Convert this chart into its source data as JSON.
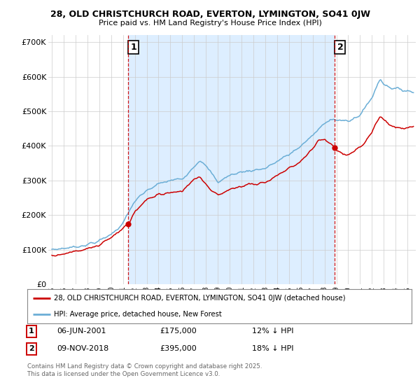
{
  "title": "28, OLD CHRISTCHURCH ROAD, EVERTON, LYMINGTON, SO41 0JW",
  "subtitle": "Price paid vs. HM Land Registry's House Price Index (HPI)",
  "ylim": [
    0,
    720000
  ],
  "yticks": [
    0,
    100000,
    200000,
    300000,
    400000,
    500000,
    600000,
    700000
  ],
  "ytick_labels": [
    "£0",
    "£100K",
    "£200K",
    "£300K",
    "£400K",
    "£500K",
    "£600K",
    "£700K"
  ],
  "sale1_x": 2001.44,
  "sale1_y": 175000,
  "sale2_x": 2018.86,
  "sale2_y": 395000,
  "vline1_x": 2001.44,
  "vline2_x": 2018.86,
  "legend_line1": "28, OLD CHRISTCHURCH ROAD, EVERTON, LYMINGTON, SO41 0JW (detached house)",
  "legend_line2": "HPI: Average price, detached house, New Forest",
  "annotation1_date": "06-JUN-2001",
  "annotation1_price": "£175,000",
  "annotation1_hpi": "12% ↓ HPI",
  "annotation2_date": "09-NOV-2018",
  "annotation2_price": "£395,000",
  "annotation2_hpi": "18% ↓ HPI",
  "footnote": "Contains HM Land Registry data © Crown copyright and database right 2025.\nThis data is licensed under the Open Government Licence v3.0.",
  "line_color_red": "#cc0000",
  "line_color_blue": "#6baed6",
  "shade_color": "#ddeeff",
  "vline_color": "#cc0000",
  "background_color": "#ffffff",
  "grid_color": "#cccccc",
  "xmin": 1994.7,
  "xmax": 2025.7
}
